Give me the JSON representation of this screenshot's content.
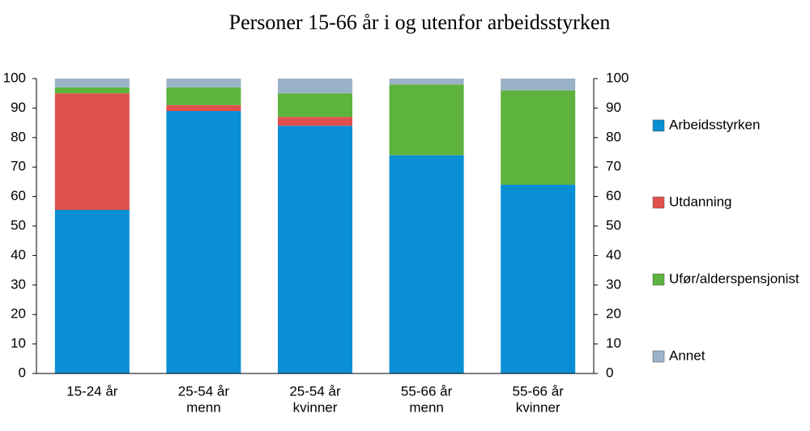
{
  "chart_data": {
    "type": "stacked-bar",
    "title": "Personer 15-66 år i og utenfor arbeidsstyrken",
    "categories": [
      [
        "15-24 år"
      ],
      [
        "25-54 år",
        "menn"
      ],
      [
        "25-54 år",
        "kvinner"
      ],
      [
        "55-66 år",
        "menn"
      ],
      [
        "55-66 år",
        "kvinner"
      ]
    ],
    "series": [
      {
        "name": "Arbeidsstyrken",
        "color": "#0a8fd4",
        "values": [
          55.5,
          89,
          84,
          74,
          64
        ]
      },
      {
        "name": "Utdanning",
        "color": "#e0504c",
        "values": [
          39.5,
          2,
          3,
          0,
          0
        ]
      },
      {
        "name": "Ufør/alderspensjonist",
        "color": "#5db33e",
        "values": [
          2,
          6,
          8,
          24,
          32
        ]
      },
      {
        "name": "Annet",
        "color": "#9bb3c8",
        "values": [
          3,
          3,
          5,
          2,
          4
        ]
      }
    ],
    "ylim": [
      0,
      100
    ],
    "yticks": [
      0,
      10,
      20,
      30,
      40,
      50,
      60,
      70,
      80,
      90,
      100
    ],
    "y2lim": [
      0,
      100
    ],
    "y2ticks": [
      0,
      10,
      20,
      30,
      40,
      50,
      60,
      70,
      80,
      90,
      100
    ],
    "legend": "right",
    "grid": false
  }
}
